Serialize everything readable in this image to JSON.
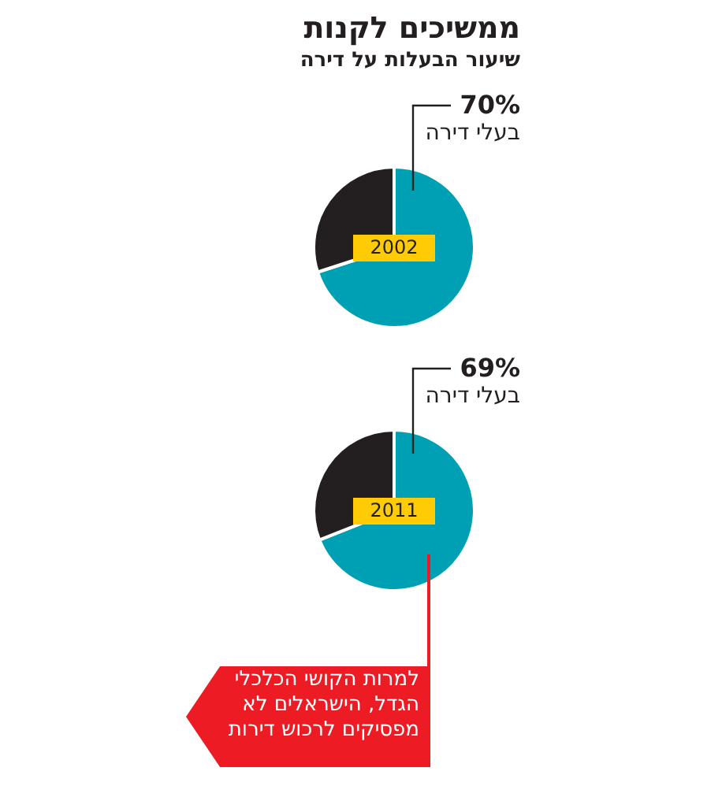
{
  "chart_data": [
    {
      "type": "pie",
      "title": "ממשיכים לקנות",
      "subtitle": "שיעור הבעלות על דירה",
      "categories": [
        "בעלי דירה",
        null
      ],
      "values": [
        70,
        30
      ],
      "value_labels": [
        "70%",
        null
      ],
      "colors": [
        "#00a0b4",
        "#231f20"
      ],
      "annotations": [
        "2002"
      ]
    },
    {
      "type": "pie",
      "categories": [
        "בעלי דירה",
        null
      ],
      "values": [
        69,
        31
      ],
      "value_labels": [
        "69%",
        null
      ],
      "colors": [
        "#00a0b4",
        "#231f20"
      ],
      "annotations": [
        "2011",
        "למרות הקושי הכלכלי הגדל, הישראלים לא מפסיקים לרכוש דירות"
      ]
    }
  ]
}
